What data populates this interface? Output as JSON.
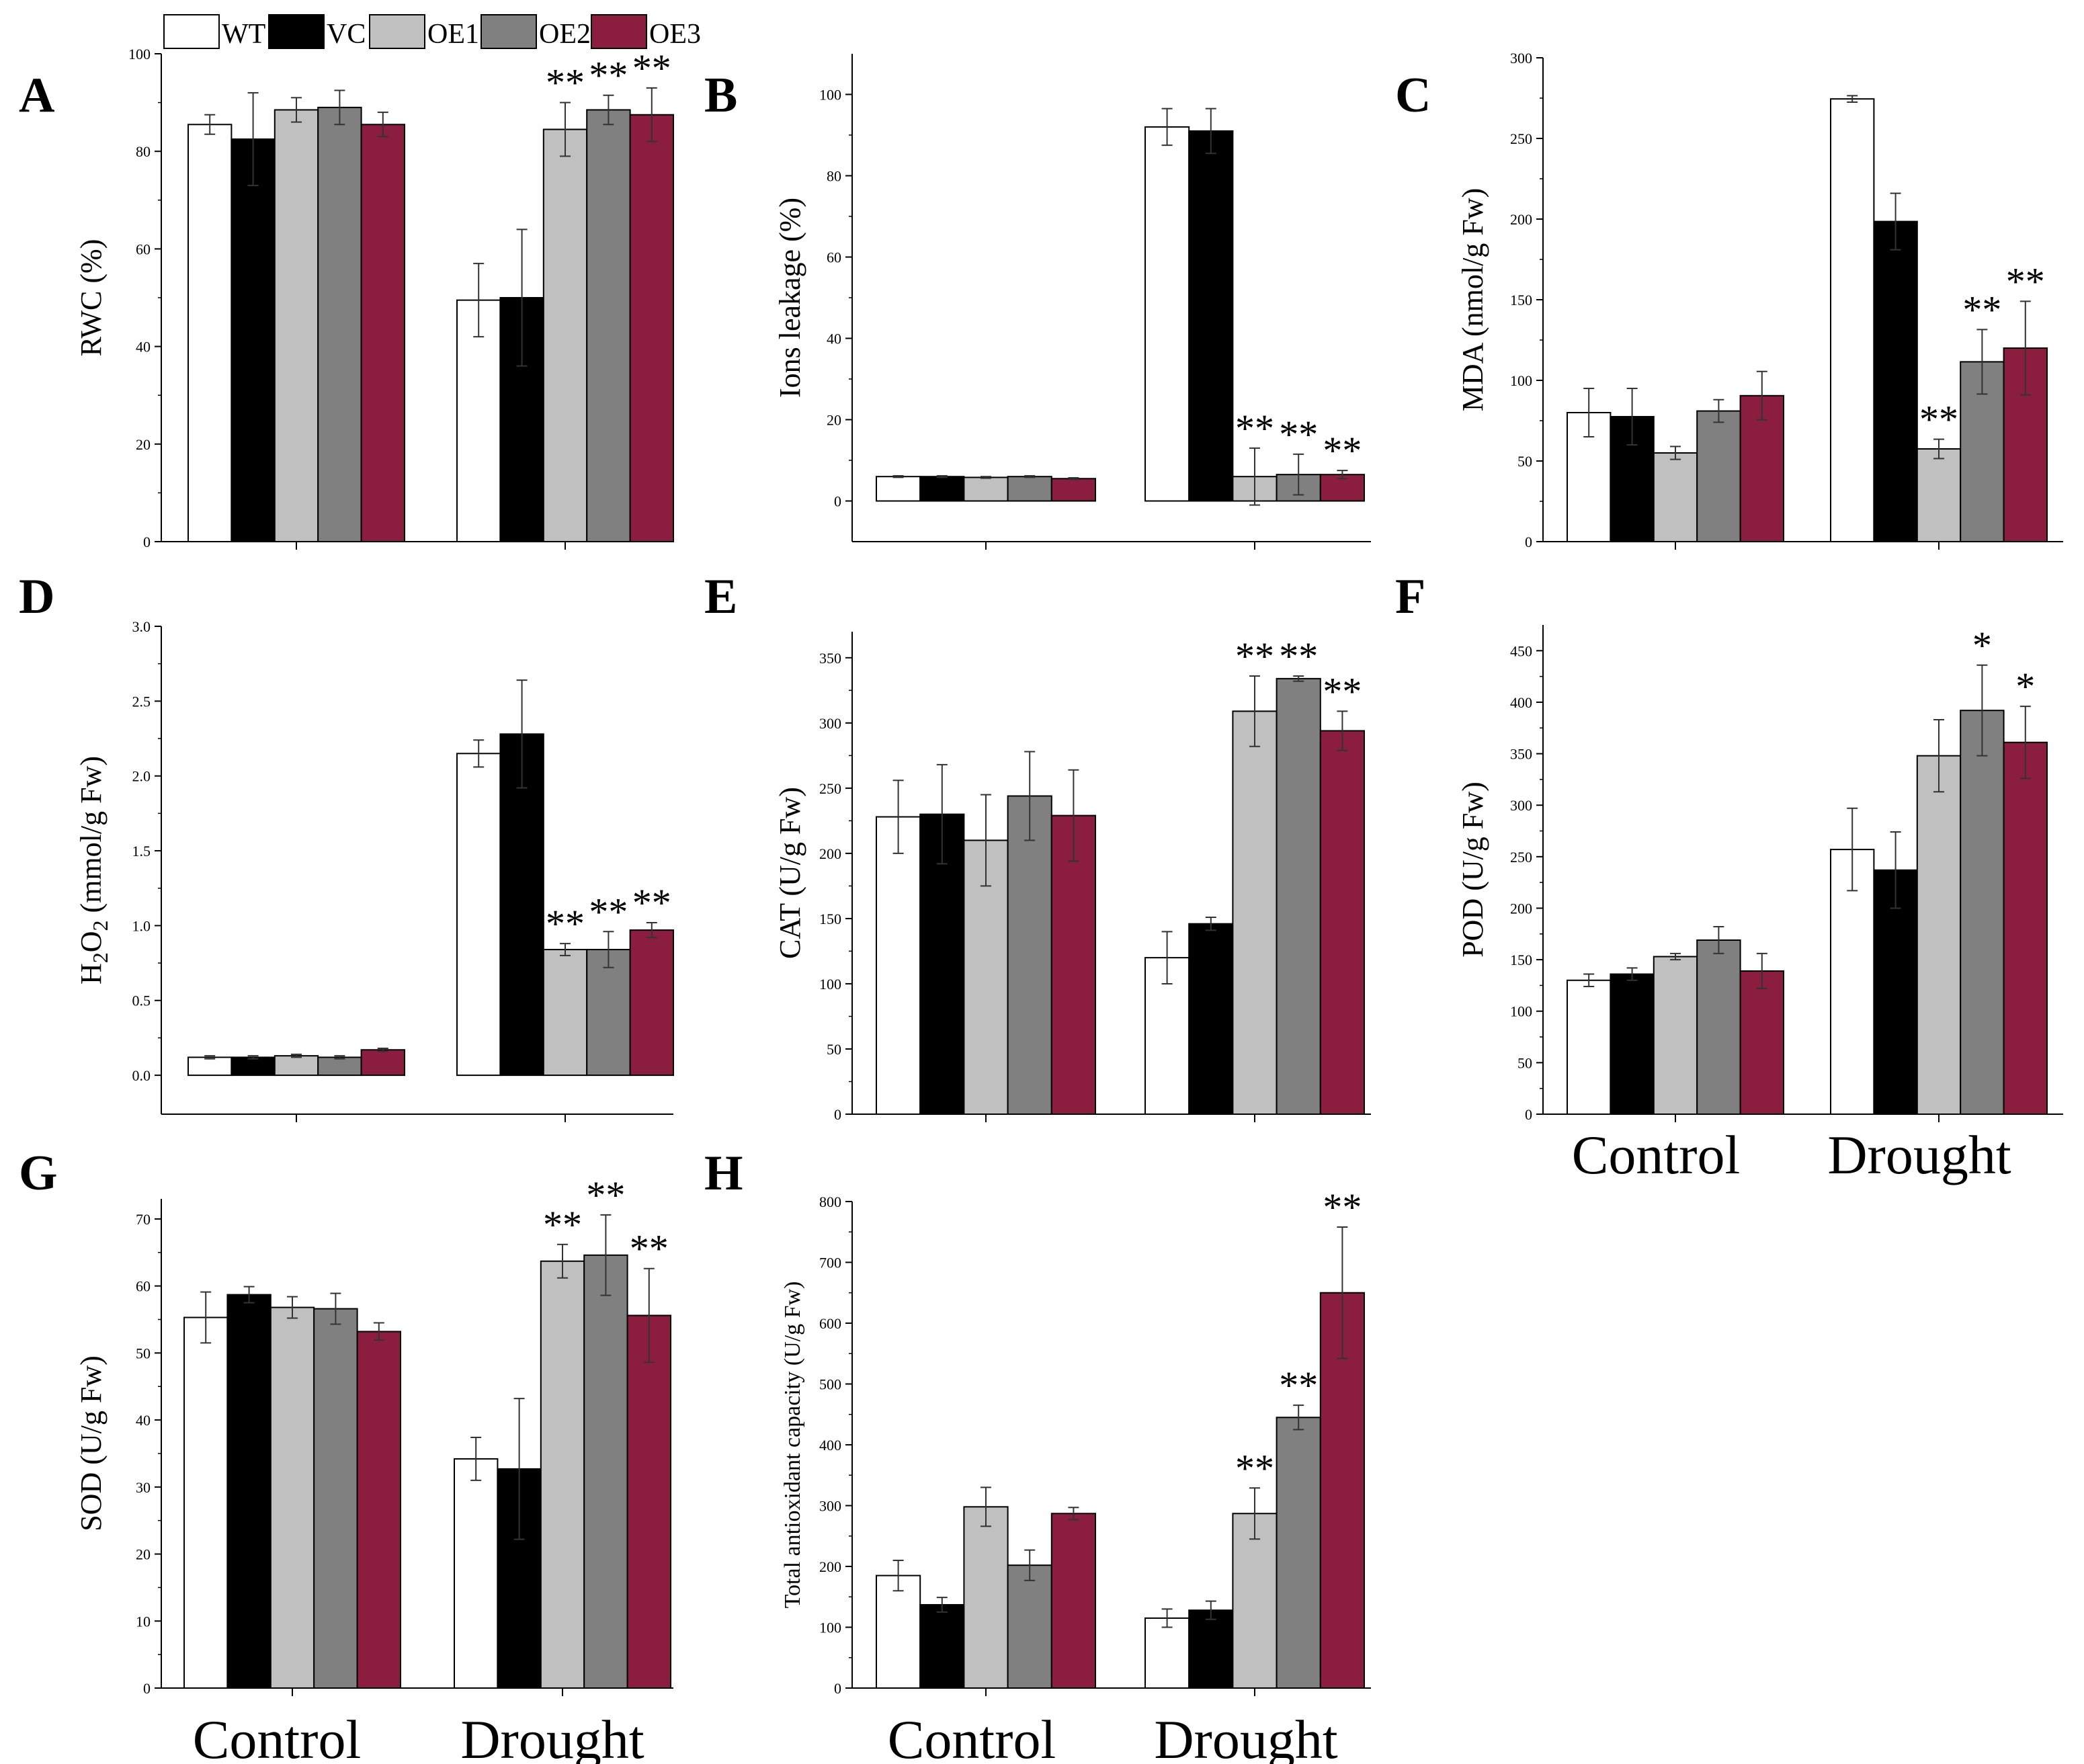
{
  "legend": [
    {
      "label": "WT",
      "color": "#ffffff"
    },
    {
      "label": "VC",
      "color": "#000000"
    },
    {
      "label": "OE1",
      "color": "#c0c0c0"
    },
    {
      "label": "OE2",
      "color": "#808080"
    },
    {
      "label": "OE3",
      "color": "#8b1e3f"
    }
  ],
  "chart_data": [
    {
      "panel": "A",
      "type": "bar",
      "ylabel": "RWC (%)",
      "categories": [
        "Control",
        "Drought"
      ],
      "ylim": [
        0,
        100
      ],
      "yticks": [
        0,
        20,
        40,
        60,
        80,
        100
      ],
      "series": [
        {
          "name": "WT",
          "values": [
            85.5,
            49.5
          ],
          "errors": [
            2,
            7.5
          ]
        },
        {
          "name": "VC",
          "values": [
            82.5,
            50
          ],
          "errors": [
            9.5,
            14
          ]
        },
        {
          "name": "OE1",
          "values": [
            88.5,
            84.5
          ],
          "errors": [
            2.5,
            5.5
          ]
        },
        {
          "name": "OE2",
          "values": [
            89,
            88.5
          ],
          "errors": [
            3.5,
            3
          ]
        },
        {
          "name": "OE3",
          "values": [
            85.5,
            87.5
          ],
          "errors": [
            2.5,
            5.5
          ]
        }
      ],
      "stars": [
        [
          "",
          ""
        ],
        [
          "",
          ""
        ],
        [
          "",
          "**"
        ],
        [
          "",
          "**"
        ],
        [
          "",
          "**"
        ]
      ]
    },
    {
      "panel": "B",
      "type": "bar",
      "ylabel": "Ions leakage (%)",
      "categories": [
        "Control",
        "Drought"
      ],
      "ylim": [
        -10,
        110
      ],
      "yticks": [
        0,
        20,
        40,
        60,
        80,
        100
      ],
      "series": [
        {
          "name": "WT",
          "values": [
            6,
            92
          ],
          "errors": [
            0.2,
            4.5
          ]
        },
        {
          "name": "VC",
          "values": [
            6,
            91
          ],
          "errors": [
            0.2,
            5.5
          ]
        },
        {
          "name": "OE1",
          "values": [
            5.8,
            6
          ],
          "errors": [
            0.2,
            7
          ]
        },
        {
          "name": "OE2",
          "values": [
            6,
            6.5
          ],
          "errors": [
            0.2,
            5
          ]
        },
        {
          "name": "OE3",
          "values": [
            5.5,
            6.5
          ],
          "errors": [
            0.2,
            1
          ]
        }
      ],
      "stars": [
        [
          "",
          ""
        ],
        [
          "",
          ""
        ],
        [
          "",
          "**"
        ],
        [
          "",
          "**"
        ],
        [
          "",
          "**"
        ]
      ]
    },
    {
      "panel": "C",
      "type": "bar",
      "ylabel": "MDA (nmol/g Fw)",
      "categories": [
        "Control",
        "Drought"
      ],
      "ylim": [
        0,
        300
      ],
      "yticks": [
        0,
        50,
        100,
        150,
        200,
        250,
        300
      ],
      "series": [
        {
          "name": "WT",
          "values": [
            80,
            274.5
          ],
          "errors": [
            15,
            2
          ]
        },
        {
          "name": "VC",
          "values": [
            77.5,
            198.5
          ],
          "errors": [
            17.5,
            17.5
          ]
        },
        {
          "name": "OE1",
          "values": [
            55,
            57.5
          ],
          "errors": [
            4,
            6
          ]
        },
        {
          "name": "OE2",
          "values": [
            81,
            111.5
          ],
          "errors": [
            7,
            20
          ]
        },
        {
          "name": "OE3",
          "values": [
            90.5,
            120
          ],
          "errors": [
            15,
            29
          ]
        }
      ],
      "stars": [
        [
          "",
          ""
        ],
        [
          "",
          ""
        ],
        [
          "",
          "**"
        ],
        [
          "",
          "**"
        ],
        [
          "",
          "**"
        ]
      ]
    },
    {
      "panel": "D",
      "type": "bar",
      "ylabel": "H2O2 (mmol/g Fw)",
      "categories": [
        "Control",
        "Drought"
      ],
      "ylim": [
        -0.26,
        3.0
      ],
      "yticks": [
        0.0,
        0.5,
        1.0,
        1.5,
        2.0,
        2.5,
        3.0
      ],
      "series": [
        {
          "name": "WT",
          "values": [
            0.12,
            2.15
          ],
          "errors": [
            0.01,
            0.09
          ]
        },
        {
          "name": "VC",
          "values": [
            0.12,
            2.28
          ],
          "errors": [
            0.01,
            0.36
          ]
        },
        {
          "name": "OE1",
          "values": [
            0.13,
            0.84
          ],
          "errors": [
            0.01,
            0.04
          ]
        },
        {
          "name": "OE2",
          "values": [
            0.12,
            0.84
          ],
          "errors": [
            0.01,
            0.12
          ]
        },
        {
          "name": "OE3",
          "values": [
            0.17,
            0.97
          ],
          "errors": [
            0.01,
            0.05
          ]
        }
      ],
      "stars": [
        [
          "",
          ""
        ],
        [
          "",
          ""
        ],
        [
          "",
          "**"
        ],
        [
          "",
          "**"
        ],
        [
          "",
          "**"
        ]
      ]
    },
    {
      "panel": "E",
      "type": "bar",
      "ylabel": "CAT (U/g Fw)",
      "categories": [
        "Control",
        "Drought"
      ],
      "ylim": [
        0,
        370
      ],
      "yticks": [
        0,
        50,
        100,
        150,
        200,
        250,
        300,
        350
      ],
      "series": [
        {
          "name": "WT",
          "values": [
            228,
            120
          ],
          "errors": [
            28,
            20
          ]
        },
        {
          "name": "VC",
          "values": [
            230,
            146
          ],
          "errors": [
            38,
            5
          ]
        },
        {
          "name": "OE1",
          "values": [
            210,
            309
          ],
          "errors": [
            35,
            27
          ]
        },
        {
          "name": "OE2",
          "values": [
            244,
            334
          ],
          "errors": [
            34,
            2
          ]
        },
        {
          "name": "OE3",
          "values": [
            229,
            294
          ],
          "errors": [
            35,
            15
          ]
        }
      ],
      "stars": [
        [
          "",
          ""
        ],
        [
          "",
          ""
        ],
        [
          "",
          "**"
        ],
        [
          "",
          "**"
        ],
        [
          "",
          "**"
        ]
      ]
    },
    {
      "panel": "F",
      "type": "bar",
      "ylabel": "POD (U/g Fw)",
      "categories": [
        "Control",
        "Drought"
      ],
      "ylim": [
        0,
        475
      ],
      "yticks": [
        0,
        50,
        100,
        150,
        200,
        250,
        300,
        350,
        400,
        450
      ],
      "series": [
        {
          "name": "WT",
          "values": [
            130,
            257
          ],
          "errors": [
            6,
            40
          ]
        },
        {
          "name": "VC",
          "values": [
            136,
            237
          ],
          "errors": [
            6,
            37
          ]
        },
        {
          "name": "OE1",
          "values": [
            153,
            348
          ],
          "errors": [
            3,
            35
          ]
        },
        {
          "name": "OE2",
          "values": [
            169,
            392
          ],
          "errors": [
            13,
            44
          ]
        },
        {
          "name": "OE3",
          "values": [
            139,
            361
          ],
          "errors": [
            17,
            35
          ]
        }
      ],
      "stars": [
        [
          "",
          ""
        ],
        [
          "",
          ""
        ],
        [
          "",
          ""
        ],
        [
          "",
          "*"
        ],
        [
          "",
          "*"
        ]
      ]
    },
    {
      "panel": "G",
      "type": "bar",
      "ylabel": "SOD (U/g Fw)",
      "categories": [
        "Control",
        "Drought"
      ],
      "ylim": [
        0,
        73
      ],
      "yticks": [
        0,
        10,
        20,
        30,
        40,
        50,
        60,
        70
      ],
      "series": [
        {
          "name": "WT",
          "values": [
            55.3,
            34.2
          ],
          "errors": [
            3.8,
            3.2
          ]
        },
        {
          "name": "VC",
          "values": [
            58.7,
            32.7
          ],
          "errors": [
            1.2,
            10.5
          ]
        },
        {
          "name": "OE1",
          "values": [
            56.8,
            63.7
          ],
          "errors": [
            1.6,
            2.5
          ]
        },
        {
          "name": "OE2",
          "values": [
            56.6,
            64.6
          ],
          "errors": [
            2.3,
            6
          ]
        },
        {
          "name": "OE3",
          "values": [
            53.2,
            55.6
          ],
          "errors": [
            1.3,
            7
          ]
        }
      ],
      "stars": [
        [
          "",
          ""
        ],
        [
          "",
          ""
        ],
        [
          "",
          "**"
        ],
        [
          "",
          "**"
        ],
        [
          "",
          "**"
        ]
      ]
    },
    {
      "panel": "H",
      "type": "bar",
      "ylabel": "Total antioxidant capacity (U/g Fw)",
      "categories": [
        "Control",
        "Drought"
      ],
      "ylim": [
        0,
        800
      ],
      "yticks": [
        0,
        100,
        200,
        300,
        400,
        500,
        600,
        700,
        800
      ],
      "series": [
        {
          "name": "WT",
          "values": [
            185,
            115
          ],
          "errors": [
            25,
            15
          ]
        },
        {
          "name": "VC",
          "values": [
            137,
            128
          ],
          "errors": [
            12,
            15
          ]
        },
        {
          "name": "OE1",
          "values": [
            298,
            287
          ],
          "errors": [
            32,
            42
          ]
        },
        {
          "name": "OE2",
          "values": [
            202,
            445
          ],
          "errors": [
            25,
            20
          ]
        },
        {
          "name": "OE3",
          "values": [
            287,
            650
          ],
          "errors": [
            10,
            108
          ]
        }
      ],
      "stars": [
        [
          "",
          ""
        ],
        [
          "",
          ""
        ],
        [
          "",
          "**"
        ],
        [
          "",
          "**"
        ],
        [
          "",
          "**"
        ]
      ]
    }
  ]
}
